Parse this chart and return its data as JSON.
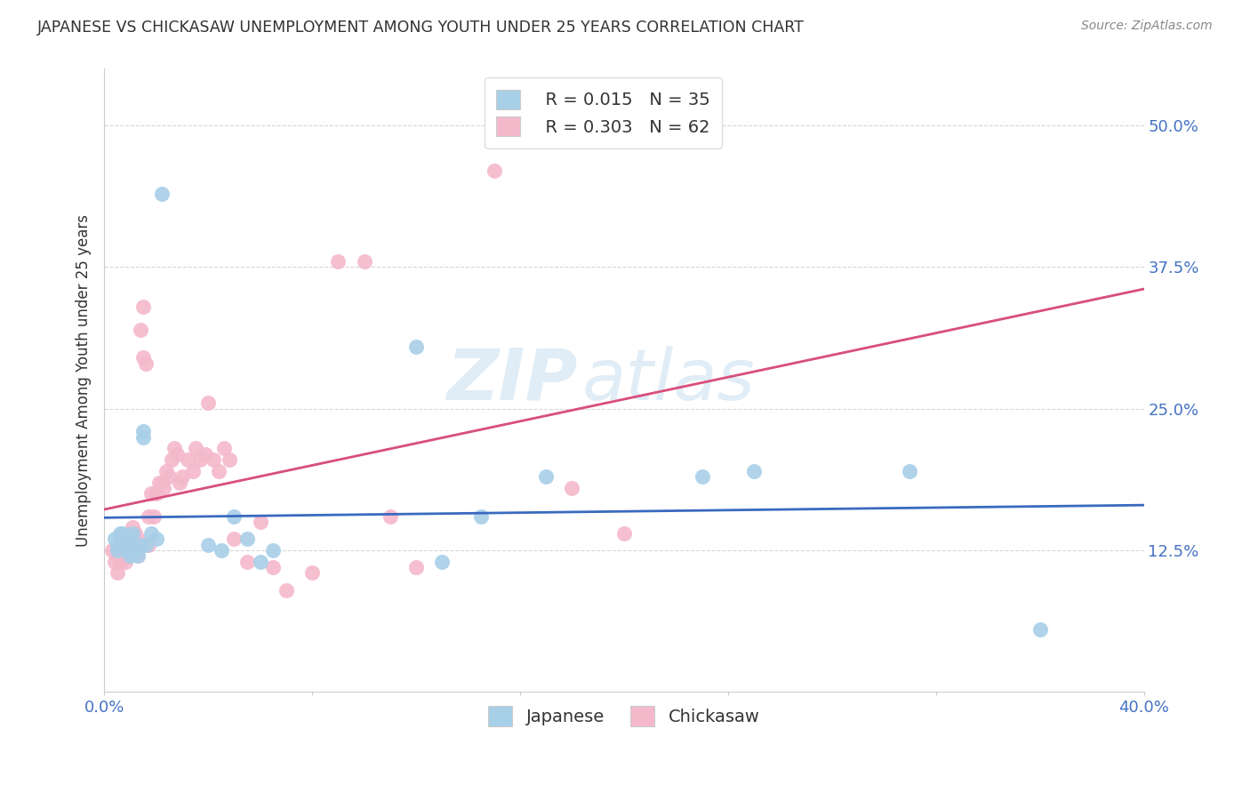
{
  "title": "JAPANESE VS CHICKASAW UNEMPLOYMENT AMONG YOUTH UNDER 25 YEARS CORRELATION CHART",
  "source": "Source: ZipAtlas.com",
  "ylabel": "Unemployment Among Youth under 25 years",
  "ytick_labels": [
    "12.5%",
    "25.0%",
    "37.5%",
    "50.0%"
  ],
  "ytick_values": [
    0.125,
    0.25,
    0.375,
    0.5
  ],
  "xlim": [
    0.0,
    0.4
  ],
  "ylim": [
    0.0,
    0.55
  ],
  "legend_r_japanese": "R = 0.015",
  "legend_n_japanese": "N = 35",
  "legend_r_chickasaw": "R = 0.303",
  "legend_n_chickasaw": "N = 62",
  "japanese_color": "#a8cfe8",
  "chickasaw_color": "#f4b8cb",
  "japanese_scatter": [
    [
      0.004,
      0.135
    ],
    [
      0.005,
      0.13
    ],
    [
      0.005,
      0.125
    ],
    [
      0.006,
      0.14
    ],
    [
      0.007,
      0.14
    ],
    [
      0.007,
      0.13
    ],
    [
      0.008,
      0.135
    ],
    [
      0.009,
      0.13
    ],
    [
      0.009,
      0.125
    ],
    [
      0.01,
      0.135
    ],
    [
      0.01,
      0.12
    ],
    [
      0.011,
      0.14
    ],
    [
      0.012,
      0.125
    ],
    [
      0.013,
      0.12
    ],
    [
      0.014,
      0.13
    ],
    [
      0.015,
      0.23
    ],
    [
      0.015,
      0.225
    ],
    [
      0.016,
      0.13
    ],
    [
      0.018,
      0.14
    ],
    [
      0.02,
      0.135
    ],
    [
      0.022,
      0.44
    ],
    [
      0.04,
      0.13
    ],
    [
      0.045,
      0.125
    ],
    [
      0.05,
      0.155
    ],
    [
      0.055,
      0.135
    ],
    [
      0.06,
      0.115
    ],
    [
      0.065,
      0.125
    ],
    [
      0.12,
      0.305
    ],
    [
      0.13,
      0.115
    ],
    [
      0.145,
      0.155
    ],
    [
      0.17,
      0.19
    ],
    [
      0.23,
      0.19
    ],
    [
      0.25,
      0.195
    ],
    [
      0.31,
      0.195
    ],
    [
      0.36,
      0.055
    ]
  ],
  "chickasaw_scatter": [
    [
      0.003,
      0.125
    ],
    [
      0.004,
      0.115
    ],
    [
      0.005,
      0.12
    ],
    [
      0.005,
      0.105
    ],
    [
      0.006,
      0.135
    ],
    [
      0.006,
      0.115
    ],
    [
      0.007,
      0.13
    ],
    [
      0.007,
      0.12
    ],
    [
      0.008,
      0.125
    ],
    [
      0.008,
      0.115
    ],
    [
      0.009,
      0.13
    ],
    [
      0.009,
      0.12
    ],
    [
      0.01,
      0.14
    ],
    [
      0.01,
      0.125
    ],
    [
      0.011,
      0.145
    ],
    [
      0.011,
      0.13
    ],
    [
      0.012,
      0.14
    ],
    [
      0.012,
      0.125
    ],
    [
      0.013,
      0.135
    ],
    [
      0.013,
      0.12
    ],
    [
      0.014,
      0.32
    ],
    [
      0.015,
      0.34
    ],
    [
      0.015,
      0.295
    ],
    [
      0.016,
      0.29
    ],
    [
      0.017,
      0.155
    ],
    [
      0.017,
      0.13
    ],
    [
      0.018,
      0.175
    ],
    [
      0.019,
      0.155
    ],
    [
      0.02,
      0.175
    ],
    [
      0.021,
      0.185
    ],
    [
      0.022,
      0.185
    ],
    [
      0.023,
      0.18
    ],
    [
      0.024,
      0.195
    ],
    [
      0.025,
      0.19
    ],
    [
      0.026,
      0.205
    ],
    [
      0.027,
      0.215
    ],
    [
      0.028,
      0.21
    ],
    [
      0.029,
      0.185
    ],
    [
      0.03,
      0.19
    ],
    [
      0.032,
      0.205
    ],
    [
      0.034,
      0.195
    ],
    [
      0.035,
      0.215
    ],
    [
      0.037,
      0.205
    ],
    [
      0.039,
      0.21
    ],
    [
      0.04,
      0.255
    ],
    [
      0.042,
      0.205
    ],
    [
      0.044,
      0.195
    ],
    [
      0.046,
      0.215
    ],
    [
      0.048,
      0.205
    ],
    [
      0.05,
      0.135
    ],
    [
      0.055,
      0.115
    ],
    [
      0.06,
      0.15
    ],
    [
      0.065,
      0.11
    ],
    [
      0.07,
      0.09
    ],
    [
      0.08,
      0.105
    ],
    [
      0.09,
      0.38
    ],
    [
      0.1,
      0.38
    ],
    [
      0.11,
      0.155
    ],
    [
      0.12,
      0.11
    ],
    [
      0.15,
      0.46
    ],
    [
      0.18,
      0.18
    ],
    [
      0.2,
      0.14
    ]
  ],
  "watermark_zip": "ZIP",
  "watermark_atlas": "atlas",
  "background_color": "#ffffff",
  "grid_color": "#cccccc",
  "title_color": "#333333",
  "source_color": "#888888",
  "tick_color": "#4472c4",
  "label_color": "#333333"
}
